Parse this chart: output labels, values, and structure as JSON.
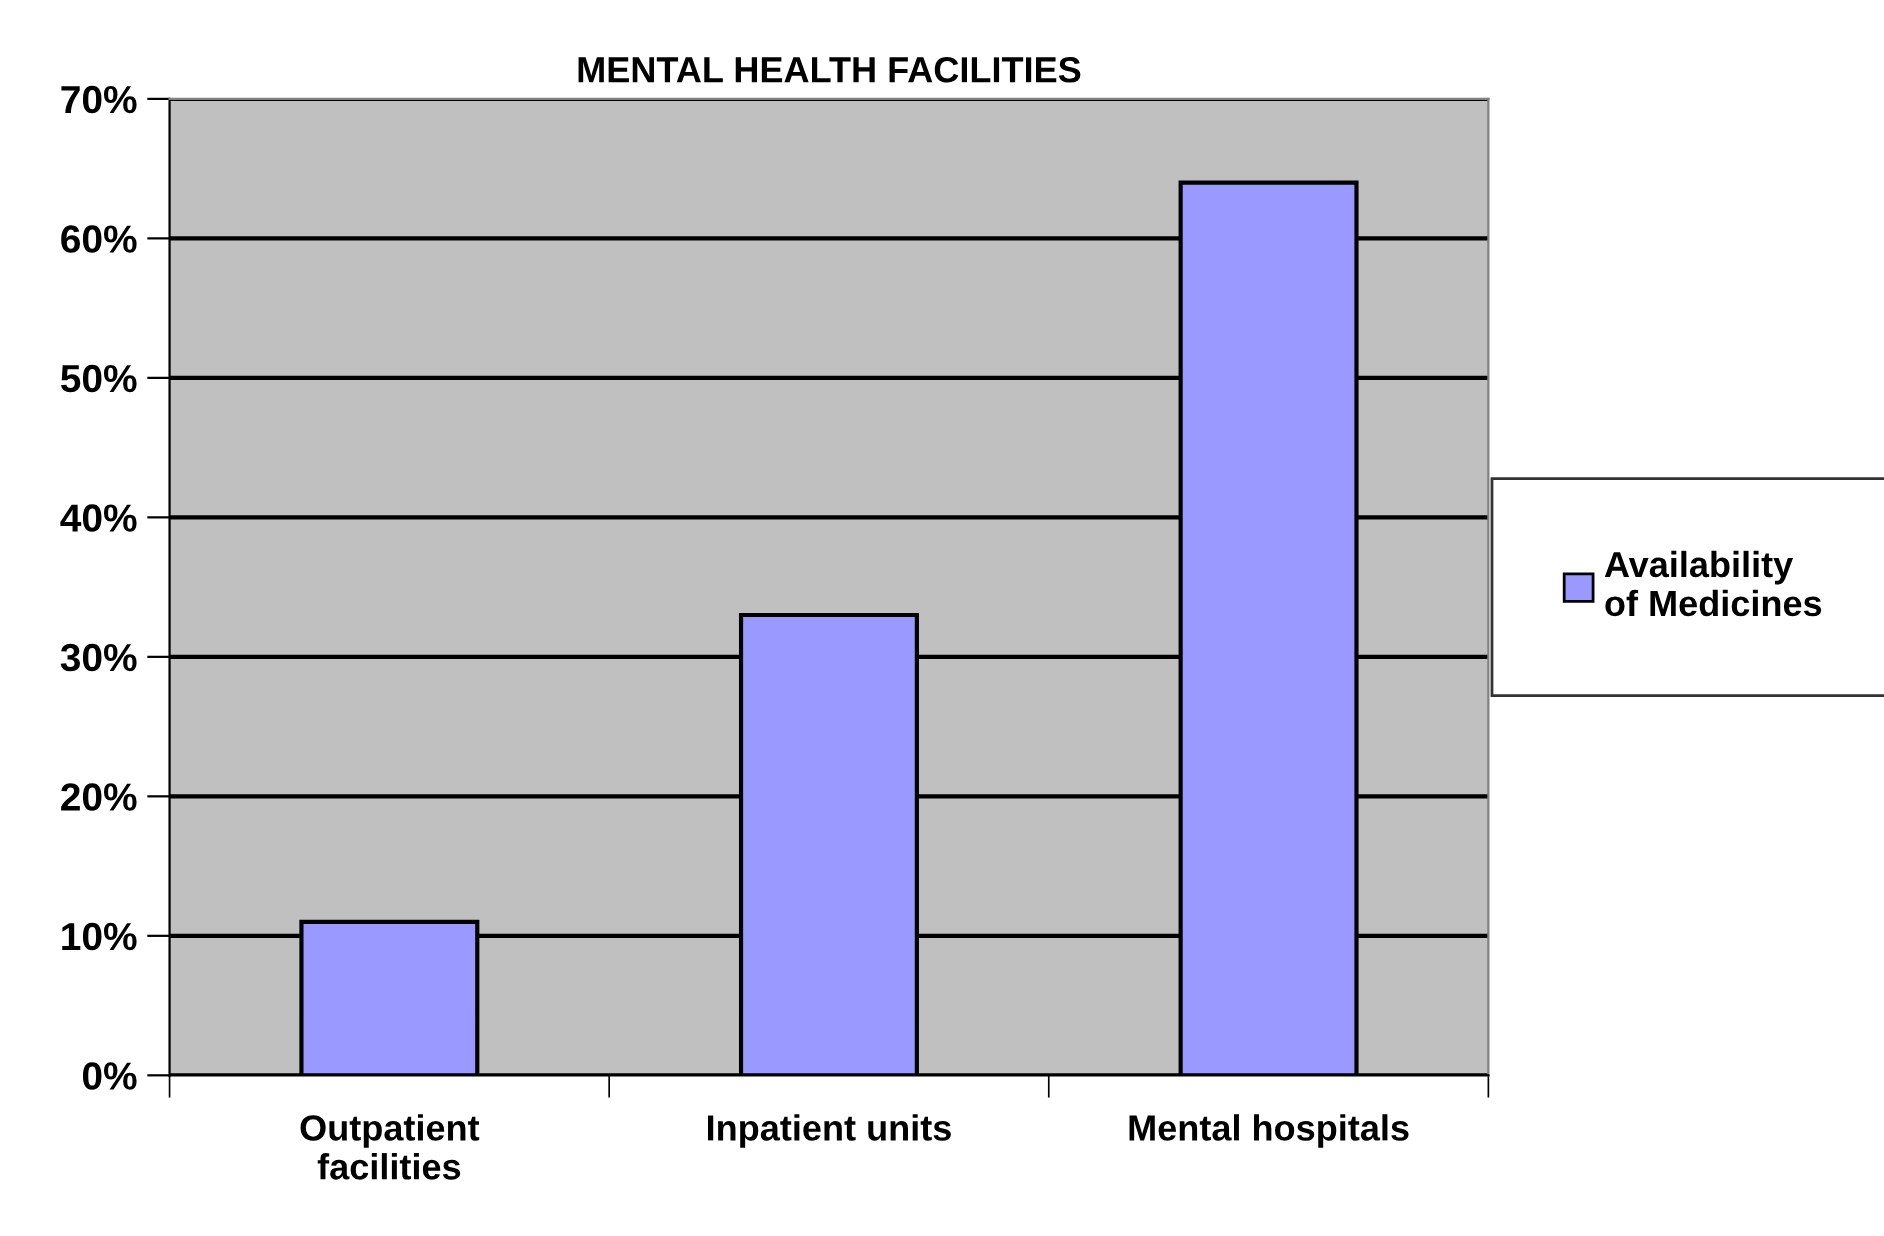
{
  "chart_data": {
    "type": "bar",
    "title": "MENTAL HEALTH FACILITIES",
    "categories": [
      "Outpatient\nfacilities",
      "Inpatient units",
      "Mental hospitals"
    ],
    "series": [
      {
        "name": "Availability\nof Medicines",
        "color": "#9999ff",
        "values": [
          11,
          33,
          64
        ]
      }
    ],
    "ylim": [
      0,
      70
    ],
    "yticks": [
      {
        "value": 0,
        "label": "0%"
      },
      {
        "value": 10,
        "label": "10%"
      },
      {
        "value": 20,
        "label": "20%"
      },
      {
        "value": 30,
        "label": "30%"
      },
      {
        "value": 40,
        "label": "40%"
      },
      {
        "value": 50,
        "label": "50%"
      },
      {
        "value": 60,
        "label": "60%"
      },
      {
        "value": 70,
        "label": "70%"
      }
    ],
    "grid": "y",
    "legend": "right"
  }
}
